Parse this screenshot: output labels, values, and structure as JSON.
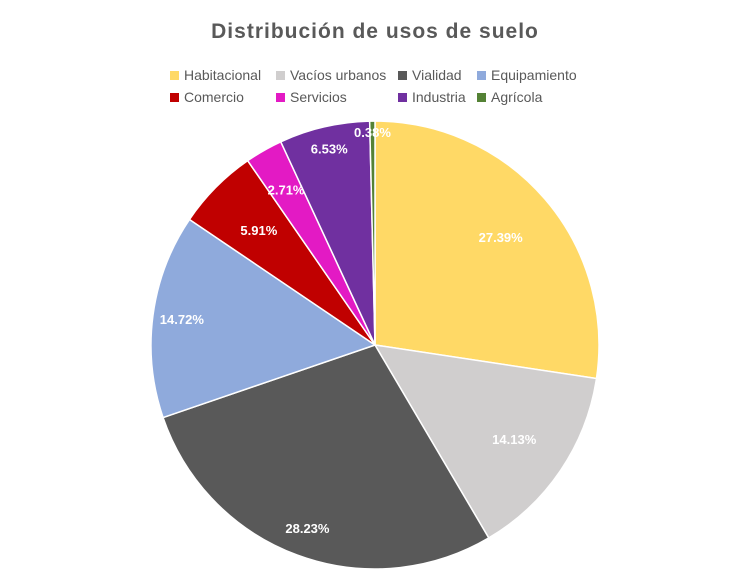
{
  "chart_data": {
    "type": "pie",
    "title": "Distribución de usos de suelo",
    "legend_position": "top",
    "slices": [
      {
        "name": "Habitacional",
        "value": 27.39,
        "label": "27.39%",
        "color": "#FFD966"
      },
      {
        "name": "Vacíos urbanos",
        "value": 14.13,
        "label": "14.13%",
        "color": "#D0CECE"
      },
      {
        "name": "Vialidad",
        "value": 28.23,
        "label": "28.23%",
        "color": "#595959"
      },
      {
        "name": "Equipamiento",
        "value": 14.72,
        "label": "14.72%",
        "color": "#8FAADC"
      },
      {
        "name": "Comercio",
        "value": 5.91,
        "label": "5.91%",
        "color": "#C00000"
      },
      {
        "name": "Servicios",
        "value": 2.71,
        "label": "2.71%",
        "color": "#E31AC4"
      },
      {
        "name": "Industria",
        "value": 6.53,
        "label": "6.53%",
        "color": "#7030A0"
      },
      {
        "name": "Agrícola",
        "value": 0.38,
        "label": "0.38%",
        "color": "#548235"
      }
    ]
  }
}
